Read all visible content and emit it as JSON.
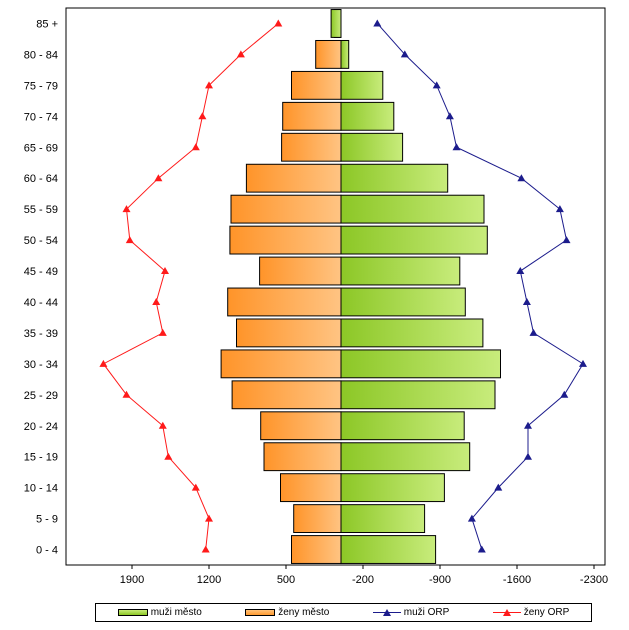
{
  "chart_data": {
    "type": "bar",
    "orientation": "horizontal-pyramid",
    "categories": [
      "0 - 4",
      "5 - 9",
      "10 - 14",
      "15 - 19",
      "20 - 24",
      "25 - 29",
      "30 - 34",
      "35 - 39",
      "40 - 44",
      "45 - 49",
      "50 - 54",
      "55 - 59",
      "60 - 64",
      "65 - 69",
      "70 - 74",
      "75 - 79",
      "80 - 84",
      "85 +"
    ],
    "x_ticks": [
      "1900",
      "1200",
      "500",
      "-200",
      "-900",
      "-1600",
      "-2300"
    ],
    "xlim": [
      2500,
      -2400
    ],
    "series": [
      {
        "name": "muži město",
        "kind": "bar",
        "color": "#9acd32",
        "values": [
          -860,
          -760,
          -940,
          -1170,
          -1120,
          -1400,
          -1450,
          -1290,
          -1130,
          -1080,
          -1330,
          -1300,
          -970,
          -560,
          -480,
          -380,
          -70,
          90
        ]
      },
      {
        "name": "ženy město",
        "kind": "bar",
        "color": "#ff9a30",
        "values": [
          450,
          430,
          550,
          700,
          730,
          990,
          1090,
          950,
          1030,
          740,
          1010,
          1000,
          860,
          540,
          530,
          450,
          230,
          60
        ]
      },
      {
        "name": "muži ORP",
        "kind": "line",
        "color": "#1c1c8c",
        "values": [
          -1280,
          -1190,
          -1430,
          -1700,
          -1700,
          -2030,
          -2200,
          -1750,
          -1690,
          -1630,
          -2050,
          -1990,
          -1640,
          -1050,
          -990,
          -870,
          -580,
          -330
        ]
      },
      {
        "name": "ženy ORP",
        "kind": "line",
        "color": "#ff1a1a",
        "values": [
          1230,
          1200,
          1320,
          1570,
          1620,
          1950,
          2160,
          1620,
          1680,
          1600,
          1920,
          1950,
          1660,
          1320,
          1260,
          1200,
          910,
          570
        ]
      }
    ]
  }
}
